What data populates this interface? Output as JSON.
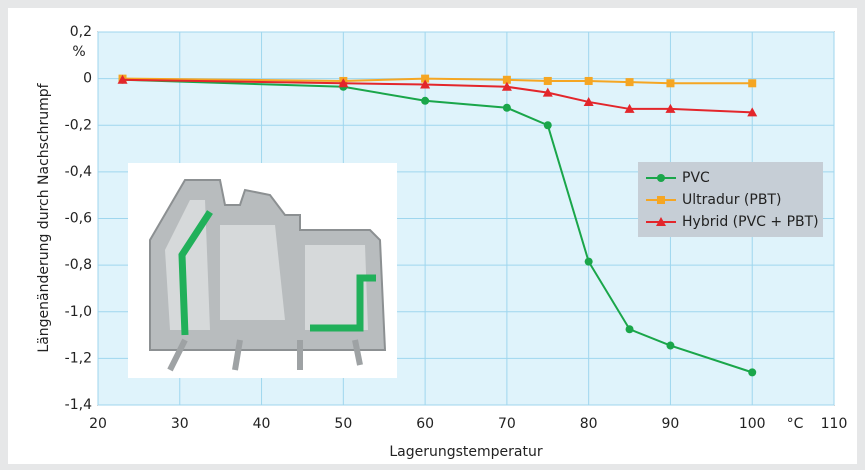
{
  "chart_data": {
    "type": "line",
    "y_axis_label": "Längenänderung durch Nachschrumpf",
    "x_axis_label": "Lagerungstemperatur",
    "y_unit": "%",
    "x_unit": "°C",
    "xlim": [
      20,
      110
    ],
    "xticks": [
      20,
      30,
      40,
      50,
      60,
      70,
      80,
      90,
      100,
      110
    ],
    "ylim": [
      -1.4,
      0.2
    ],
    "yticks": [
      {
        "value": 0.2,
        "label": "0,2"
      },
      0,
      {
        "value": -0.2,
        "label": "-0,2"
      },
      {
        "value": -0.4,
        "label": "-0,4"
      },
      {
        "value": -0.6,
        "label": "-0,6"
      },
      {
        "value": -0.8,
        "label": "-0,8"
      },
      {
        "value": -1.0,
        "label": "-1,0"
      },
      {
        "value": -1.2,
        "label": "-1,2"
      },
      {
        "value": -1.4,
        "label": "-1,4"
      }
    ],
    "grid": true,
    "x": [
      23,
      50,
      60,
      70,
      75,
      80,
      85,
      90,
      100
    ],
    "series": [
      {
        "name": "PVC",
        "color": "#1aa64a",
        "marker": "circle",
        "values": [
          -0.005,
          -0.035,
          -0.095,
          -0.125,
          -0.2,
          -0.785,
          -1.075,
          -1.145,
          -1.26
        ]
      },
      {
        "name": "Ultradur (PBT)",
        "color": "#f5a623",
        "marker": "square",
        "values": [
          0,
          -0.01,
          0.0,
          -0.005,
          -0.01,
          -0.01,
          -0.015,
          -0.02,
          -0.02
        ]
      },
      {
        "name": "Hybrid (PVC + PBT)",
        "color": "#e3262b",
        "marker": "triangle",
        "values": [
          -0.005,
          -0.02,
          -0.025,
          -0.035,
          -0.06,
          -0.1,
          -0.13,
          -0.13,
          -0.145
        ]
      }
    ]
  }
}
